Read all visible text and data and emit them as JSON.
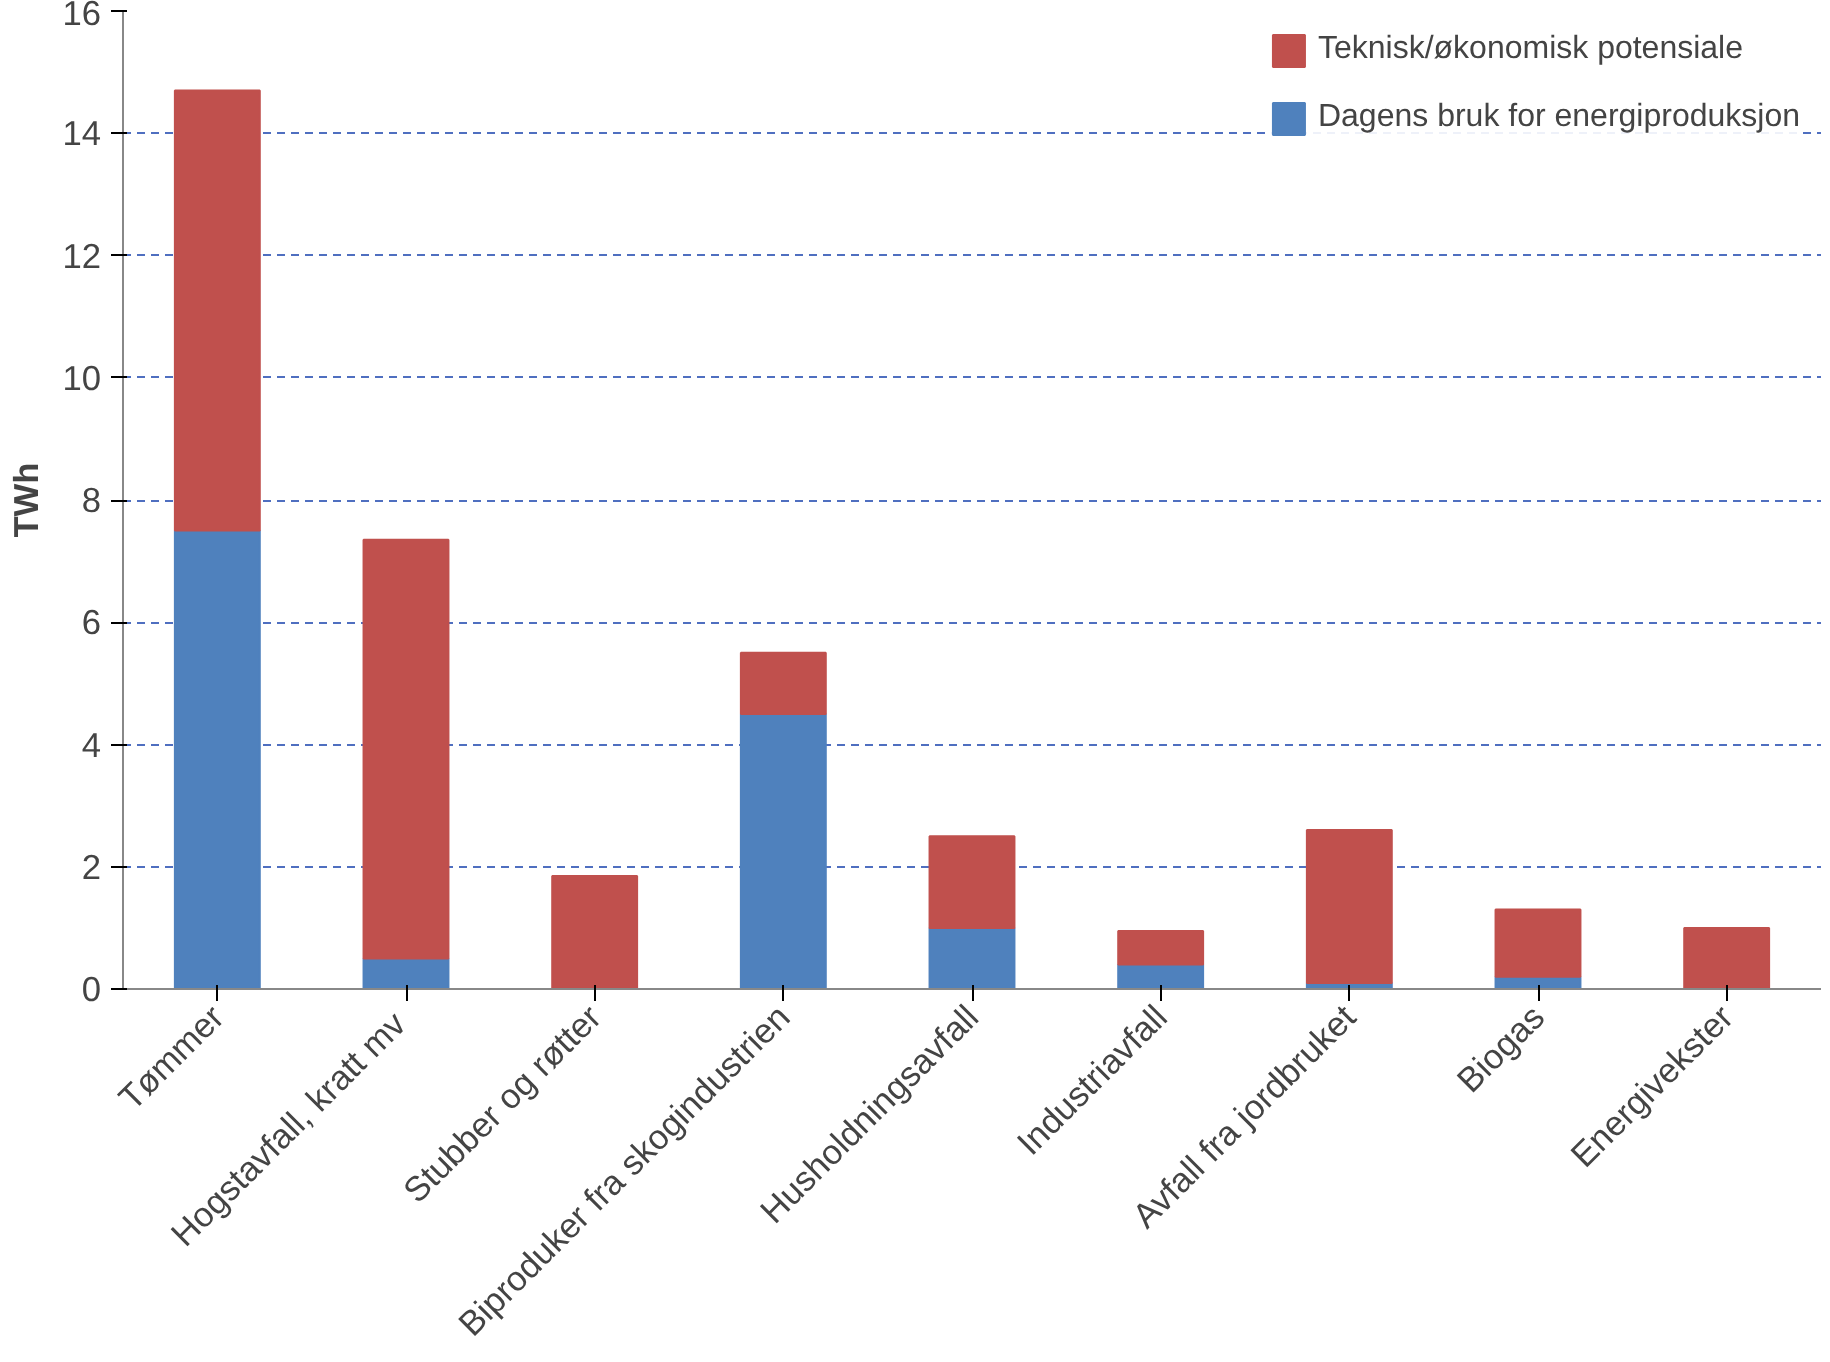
{
  "chart_data": {
    "type": "bar",
    "stacked": true,
    "ylabel": "TWh",
    "categories": [
      "Tømmer",
      "Hogstavfall,  kratt mv",
      "Stubber og røtter",
      "Biproduker fra skogindustrien",
      "Husholdningsavfall",
      "Industriavfall",
      "Avfall fra jordbruket",
      "Biogas",
      "Energivekster"
    ],
    "series": [
      {
        "name": "Dagens bruk for energiproduksjon",
        "color": "#4f81bd",
        "values": [
          7.5,
          0.5,
          0,
          4.5,
          1.0,
          0.4,
          0.1,
          0.2,
          0
        ]
      },
      {
        "name": "Teknisk/økonomisk potensiale",
        "color": "#c0504d",
        "values": [
          7.2,
          6.85,
          1.85,
          1.0,
          1.5,
          0.55,
          2.5,
          1.1,
          1.0
        ]
      }
    ],
    "ylim": [
      0,
      16
    ],
    "yticks": [
      0,
      2,
      4,
      6,
      8,
      10,
      12,
      14,
      16
    ],
    "grid": "y",
    "legend": "top right"
  }
}
